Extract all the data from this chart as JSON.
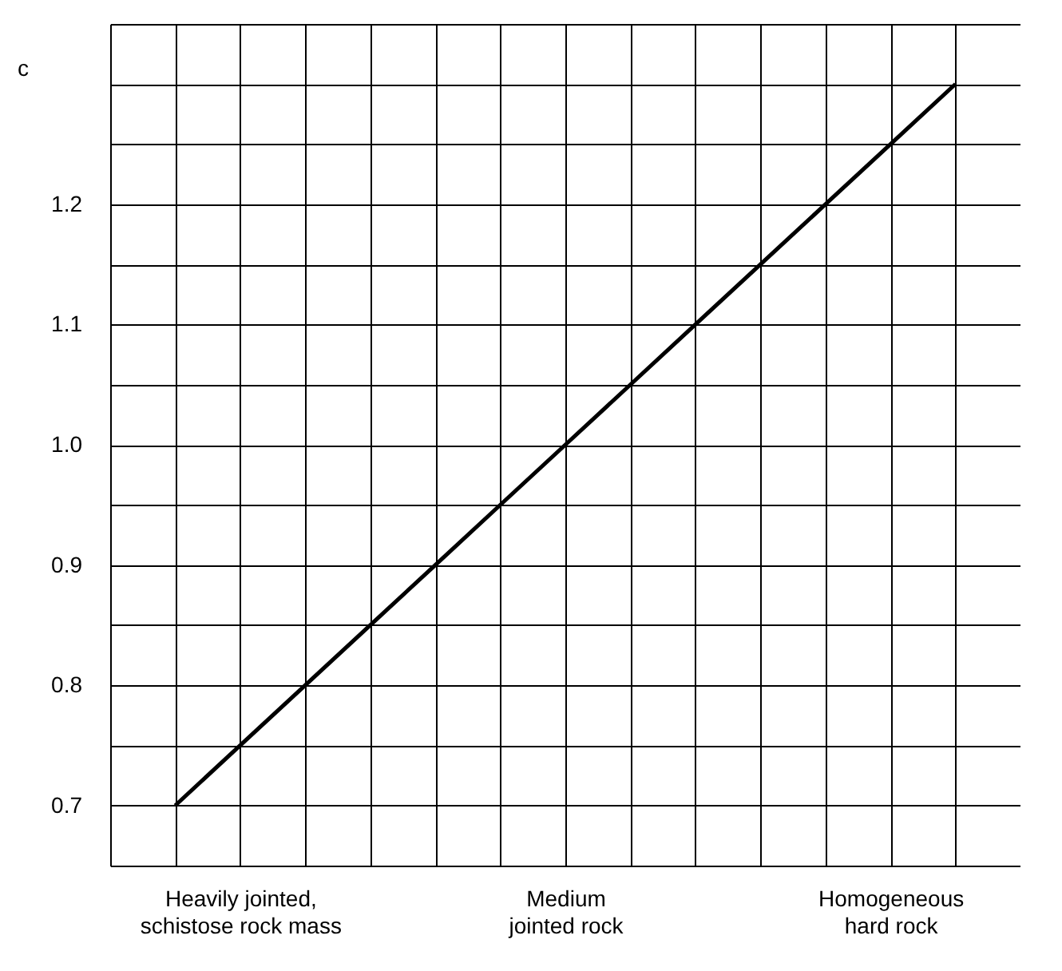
{
  "chart_data": {
    "type": "line",
    "ylabel": "c",
    "categories": [
      null,
      null,
      "Heavily jointed,\nschistose rock mass",
      null,
      null,
      null,
      null,
      "Medium\njointed rock",
      null,
      null,
      null,
      null,
      "Homogeneous\nhard rock",
      null,
      null
    ],
    "series": [
      {
        "color": "#000000",
        "values": [
          null,
          0.7,
          0.75,
          0.8,
          0.85,
          0.9,
          0.95,
          1.0,
          1.05,
          1.1,
          1.15,
          1.2,
          1.25,
          1.3,
          null
        ]
      }
    ],
    "ylim": [
      0.65,
      1.35
    ],
    "yticks": [
      {
        "value": 0.65,
        "label": null
      },
      {
        "value": 0.7,
        "label": "0.7"
      },
      {
        "value": 0.75,
        "label": null
      },
      {
        "value": 0.8,
        "label": "0.8"
      },
      {
        "value": 0.85,
        "label": null
      },
      {
        "value": 0.9,
        "label": "0.9"
      },
      {
        "value": 0.95,
        "label": null
      },
      {
        "value": 1.0,
        "label": "1.0"
      },
      {
        "value": 1.05,
        "label": null
      },
      {
        "value": 1.1,
        "label": "1.1"
      },
      {
        "value": 1.15,
        "label": null
      },
      {
        "value": 1.2,
        "label": "1.2"
      },
      {
        "value": 1.25,
        "label": null
      },
      {
        "value": 1.3,
        "label": null
      },
      {
        "value": 1.35,
        "label": null
      }
    ],
    "grid": true,
    "marker": "none",
    "line_style": "solid"
  }
}
